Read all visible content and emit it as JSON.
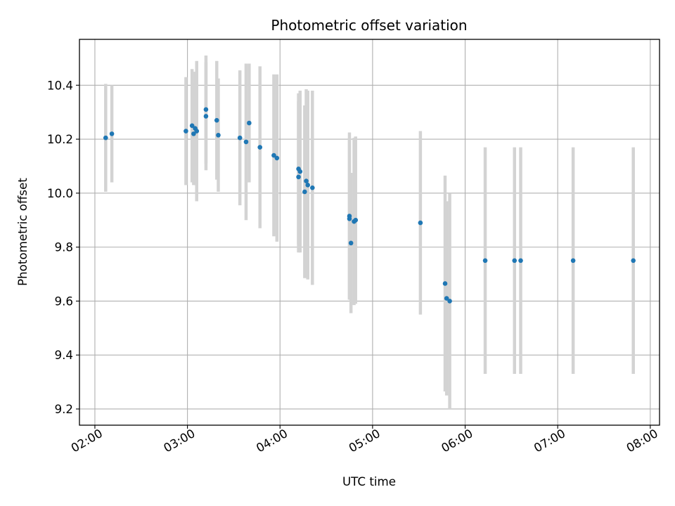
{
  "chart_data": {
    "type": "scatter",
    "title": "Photometric offset variation",
    "xlabel": "UTC time",
    "ylabel": "Photometric offset",
    "x_ticks": [
      "02:00",
      "03:00",
      "04:00",
      "05:00",
      "06:00",
      "07:00",
      "08:00"
    ],
    "y_ticks": [
      "9.2",
      "9.4",
      "9.6",
      "9.8",
      "10.0",
      "10.2",
      "10.4"
    ],
    "xlim": [
      "01:50",
      "08:06"
    ],
    "ylim": [
      9.14,
      10.57
    ],
    "grid": true,
    "colors": {
      "point": "#1f77b4",
      "errorbar": "#d3d3d3",
      "grid": "#b0b0b0"
    },
    "series": [
      {
        "points": [
          {
            "x": "02:07",
            "y": 10.205,
            "err": 0.2
          },
          {
            "x": "02:11",
            "y": 10.22,
            "err": 0.18
          },
          {
            "x": "02:59",
            "y": 10.23,
            "err": 0.2
          },
          {
            "x": "03:03",
            "y": 10.25,
            "err": 0.21
          },
          {
            "x": "03:04",
            "y": 10.22,
            "err": 0.19
          },
          {
            "x": "03:05",
            "y": 10.24,
            "err": 0.21
          },
          {
            "x": "03:06",
            "y": 10.23,
            "err": 0.26
          },
          {
            "x": "03:12",
            "y": 10.285,
            "err": 0.2
          },
          {
            "x": "03:12",
            "y": 10.31,
            "err": 0.2
          },
          {
            "x": "03:19",
            "y": 10.27,
            "err": 0.22
          },
          {
            "x": "03:20",
            "y": 10.215,
            "err": 0.21
          },
          {
            "x": "03:34",
            "y": 10.205,
            "err": 0.25
          },
          {
            "x": "03:38",
            "y": 10.19,
            "err": 0.29
          },
          {
            "x": "03:40",
            "y": 10.26,
            "err": 0.22
          },
          {
            "x": "03:47",
            "y": 10.17,
            "err": 0.3
          },
          {
            "x": "03:56",
            "y": 10.14,
            "err": 0.3
          },
          {
            "x": "03:58",
            "y": 10.13,
            "err": 0.31
          },
          {
            "x": "04:12",
            "y": 10.06,
            "err": 0.28
          },
          {
            "x": "04:12",
            "y": 10.09,
            "err": 0.28
          },
          {
            "x": "04:13",
            "y": 10.08,
            "err": 0.3
          },
          {
            "x": "04:16",
            "y": 10.005,
            "err": 0.32
          },
          {
            "x": "04:17",
            "y": 10.045,
            "err": 0.34
          },
          {
            "x": "04:18",
            "y": 10.03,
            "err": 0.35
          },
          {
            "x": "04:21",
            "y": 10.02,
            "err": 0.36
          },
          {
            "x": "04:45",
            "y": 9.915,
            "err": 0.31
          },
          {
            "x": "04:45",
            "y": 9.905,
            "err": 0.3
          },
          {
            "x": "04:46",
            "y": 9.815,
            "err": 0.26
          },
          {
            "x": "04:48",
            "y": 9.895,
            "err": 0.31
          },
          {
            "x": "04:49",
            "y": 9.9,
            "err": 0.31
          },
          {
            "x": "05:31",
            "y": 9.89,
            "err": 0.34
          },
          {
            "x": "05:47",
            "y": 9.665,
            "err": 0.4
          },
          {
            "x": "05:48",
            "y": 9.61,
            "err": 0.36
          },
          {
            "x": "05:50",
            "y": 9.6,
            "err": 0.4
          },
          {
            "x": "06:13",
            "y": 9.75,
            "err": 0.42
          },
          {
            "x": "06:32",
            "y": 9.75,
            "err": 0.42
          },
          {
            "x": "06:36",
            "y": 9.75,
            "err": 0.42
          },
          {
            "x": "07:10",
            "y": 9.75,
            "err": 0.42
          },
          {
            "x": "07:49",
            "y": 9.75,
            "err": 0.42
          }
        ]
      }
    ]
  }
}
